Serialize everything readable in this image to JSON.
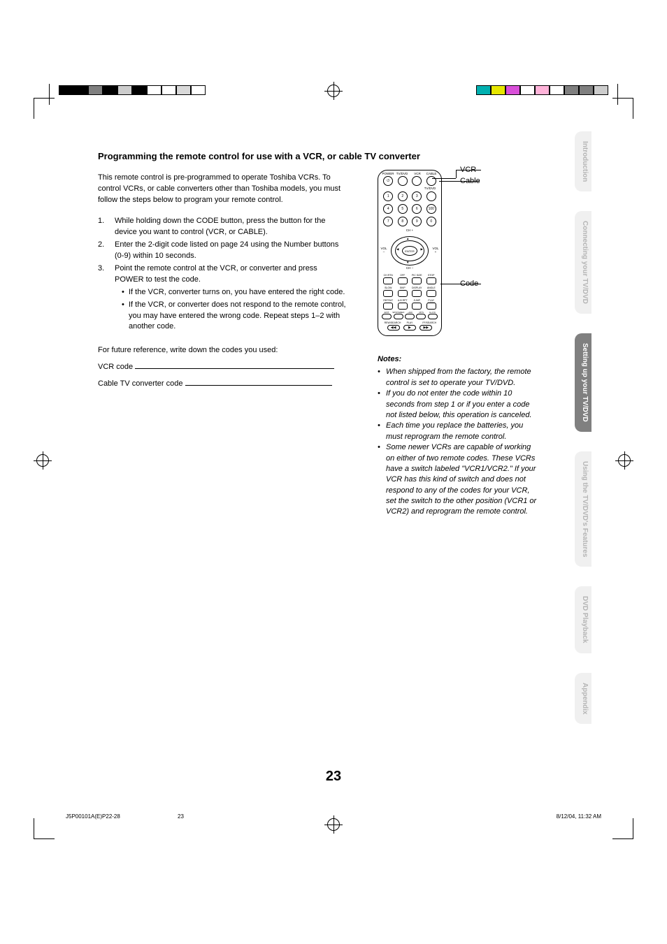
{
  "heading": "Programming the remote control for use with a VCR, or cable TV converter",
  "intro": "This remote control is pre-programmed to operate Toshiba VCRs. To control VCRs, or cable converters other than Toshiba models, you must follow the steps below to program your remote control.",
  "steps": [
    {
      "num": "1.",
      "text": "While holding down the CODE button, press the button for the device you want to control (VCR, or CABLE)."
    },
    {
      "num": "2.",
      "text": "Enter the 2-digit code listed on page 24 using the Number buttons (0-9) within 10 seconds."
    },
    {
      "num": "3.",
      "text": "Point the remote control at the VCR, or converter and press POWER to test the code."
    }
  ],
  "substeps": [
    "If the VCR, converter turns on, you have entered the right code.",
    "If the VCR, or converter does not respond to the remote control, you may have entered the wrong code. Repeat steps 1–2 with another code."
  ],
  "future_ref": "For future reference, write down the codes you used:",
  "vcr_code_label": "VCR code",
  "cable_code_label": "Cable TV converter code",
  "callouts": {
    "vcr": "VCR",
    "cable": "Cable",
    "code": "Code"
  },
  "remote_labels": {
    "power": "POWER",
    "tvdvd": "TV/DVD",
    "vcr": "VCR",
    "cable": "CABLE",
    "tv_dvd": "TV/DVD",
    "enter": "ENTER",
    "chup": "CH +",
    "chdown": "CH –",
    "vol_minus": "VOL –",
    "vol_plus": "VOL +",
    "row5": [
      "CH RTN",
      "OFF",
      "PIC SIZE",
      "STOP"
    ],
    "row6": [
      "SLOW",
      "SKIP",
      "DISPLAY",
      "ANGLE"
    ],
    "row7": [
      "REPEAT",
      "A-B RPT",
      "JUMP",
      "PLAY MODE"
    ],
    "row8": [
      "EXIT",
      "SP/STEREO",
      "+100",
      "MTS",
      "E.A.M."
    ],
    "bottom": [
      "REW/SEARCH",
      "PLAY",
      "FF/SEARCH"
    ]
  },
  "notes_title": "Notes:",
  "notes": [
    "When shipped from the factory, the remote control is set to operate your TV/DVD.",
    "If you do not enter the code within 10 seconds from step 1 or if you enter a code not listed below, this operation is canceled.",
    "Each time you replace the batteries, you must reprogram the remote control.",
    "Some newer VCRs are capable of working on either of two remote codes. These VCRs have a switch labeled \"VCR1/VCR2.\" If your VCR has this kind of switch and does not respond to any of the codes for your VCR, set the switch to the other position (VCR1 or VCR2) and reprogram the remote control."
  ],
  "tabs": [
    "Introduction",
    "Connecting your TV/DVD",
    "Setting up your TV/DVD",
    "Using the TV/DVD's Features",
    "DVD Playback",
    "Appendix"
  ],
  "active_tab_index": 2,
  "page_number": "23",
  "footer": {
    "doc": "J5P00101A(E)P22-28",
    "page": "23",
    "date": "8/12/04, 11:32 AM"
  },
  "colors": {
    "left_bar": [
      "#000000",
      "#000000",
      "#7f7f7f",
      "#000000",
      "#cccccc",
      "#000000",
      "#ffffff",
      "#ffffff",
      "#d9d9d9",
      "#ffffff"
    ],
    "right_bar": [
      "#00b0b0",
      "#e6e600",
      "#d94fd9",
      "#ffffff",
      "#ffb3d9",
      "#ffffff",
      "#7f7f7f",
      "#7f7f7f",
      "#cccccc"
    ],
    "tab_active_bg": "#808080",
    "tab_active_fg": "#ffffff",
    "tab_bg": "#f0f0f0",
    "tab_fg": "#b5b5b5"
  }
}
